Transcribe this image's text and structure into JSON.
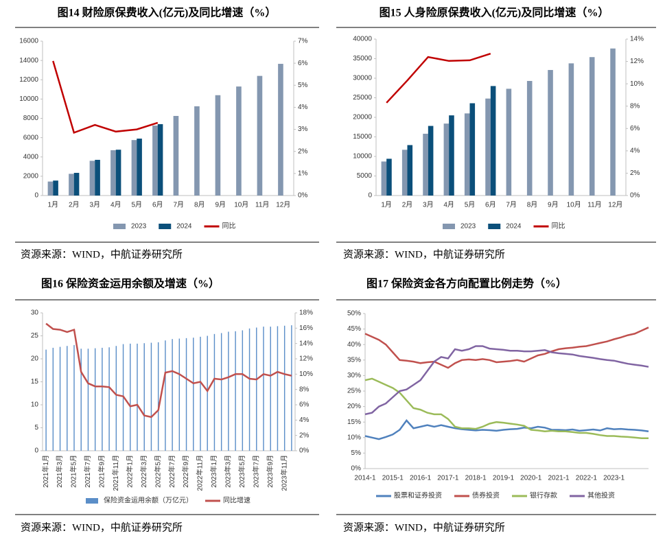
{
  "chart_data": [
    {
      "type": "bar",
      "title": "图14  财险原保费收入(亿元)及同比增速（%）",
      "source": "资源来源：WIND，中航证券研究所",
      "categories": [
        "1月",
        "2月",
        "3月",
        "4月",
        "5月",
        "6月",
        "7月",
        "8月",
        "9月",
        "10月",
        "11月",
        "12月"
      ],
      "series": [
        {
          "name": "2023",
          "type": "bar",
          "color": "#8497b0",
          "values": [
            1450,
            2250,
            3600,
            4700,
            5750,
            7250,
            8250,
            9250,
            10400,
            11300,
            12400,
            13650
          ]
        },
        {
          "name": "2024",
          "type": "bar",
          "color": "#0b4f7a",
          "values": [
            1550,
            2350,
            3700,
            4750,
            5900,
            7400,
            null,
            null,
            null,
            null,
            null,
            null
          ]
        },
        {
          "name": "同比",
          "type": "line",
          "axis": "y2",
          "color": "#c00000",
          "values": [
            6.1,
            2.85,
            3.2,
            2.9,
            3.0,
            3.3,
            null,
            null,
            null,
            null,
            null,
            null
          ]
        }
      ],
      "ylim": [
        0,
        16000
      ],
      "yticks": [
        0,
        2000,
        4000,
        6000,
        8000,
        10000,
        12000,
        14000,
        16000
      ],
      "y2lim": [
        0,
        7
      ],
      "y2ticks": [
        {
          "value": 0,
          "label": "0%"
        },
        {
          "value": 1,
          "label": "1%"
        },
        {
          "value": 2,
          "label": "2%"
        },
        {
          "value": 3,
          "label": "3%"
        },
        {
          "value": 4,
          "label": "4%"
        },
        {
          "value": 5,
          "label": "5%"
        },
        {
          "value": 6,
          "label": "6%"
        },
        {
          "value": 7,
          "label": "7%"
        }
      ]
    },
    {
      "type": "bar",
      "title": "图15  人身险原保费收入(亿元)及同比增速（%）",
      "source": "资源来源：WIND，中航证券研究所",
      "categories": [
        "1月",
        "2月",
        "3月",
        "4月",
        "5月",
        "6月",
        "7月",
        "8月",
        "9月",
        "10月",
        "11月",
        "12月"
      ],
      "series": [
        {
          "name": "2023",
          "type": "bar",
          "color": "#8497b0",
          "values": [
            8700,
            11700,
            15800,
            18400,
            21000,
            24800,
            27300,
            29300,
            32100,
            33800,
            35400,
            37600
          ]
        },
        {
          "name": "2024",
          "type": "bar",
          "color": "#0b4f7a",
          "values": [
            9400,
            12900,
            17800,
            20500,
            23600,
            28000,
            null,
            null,
            null,
            null,
            null,
            null
          ]
        },
        {
          "name": "同比",
          "type": "line",
          "axis": "y2",
          "color": "#c00000",
          "values": [
            8.3,
            10.3,
            12.4,
            12.05,
            12.1,
            12.7,
            null,
            null,
            null,
            null,
            null,
            null
          ]
        }
      ],
      "ylim": [
        0,
        40000
      ],
      "yticks": [
        0,
        5000,
        10000,
        15000,
        20000,
        25000,
        30000,
        35000,
        40000
      ],
      "y2lim": [
        0,
        14
      ],
      "y2ticks": [
        {
          "value": 0,
          "label": "0%"
        },
        {
          "value": 2,
          "label": "2%"
        },
        {
          "value": 4,
          "label": "4%"
        },
        {
          "value": 6,
          "label": "6%"
        },
        {
          "value": 8,
          "label": "8%"
        },
        {
          "value": 10,
          "label": "10%"
        },
        {
          "value": 12,
          "label": "12%"
        },
        {
          "value": 14,
          "label": "14%"
        }
      ]
    },
    {
      "type": "bar",
      "title": "图16  保险资金运用余额及增速（%）",
      "source": "资源来源：WIND，中航证券研究所",
      "categories": [
        "2021年1月",
        null,
        "2021年3月",
        null,
        "2021年5月",
        null,
        "2021年7月",
        null,
        "2021年9月",
        null,
        "2021年11月",
        null,
        "2022年1月",
        null,
        "2022年3月",
        null,
        "2022年5月",
        null,
        "2022年7月",
        null,
        "2022年9月",
        null,
        "2022年11月",
        null,
        "2023年1月",
        null,
        "2023年3月",
        null,
        "2023年5月",
        null,
        "2023年7月",
        null,
        "2023年9月",
        null,
        "2023年11月",
        null
      ],
      "series": [
        {
          "name": "保险资金运用余额（万亿元）",
          "type": "bar",
          "color": "#5b8ec8",
          "values": [
            22.0,
            22.4,
            22.6,
            22.8,
            23.0,
            22.2,
            22.2,
            22.3,
            22.4,
            22.5,
            22.8,
            23.2,
            23.3,
            23.3,
            23.4,
            23.5,
            23.6,
            24.0,
            24.3,
            24.4,
            24.5,
            24.6,
            24.8,
            25.0,
            25.4,
            25.6,
            25.9,
            26.0,
            26.2,
            26.6,
            26.8,
            27.0,
            27.0,
            27.1,
            27.2,
            27.3
          ]
        },
        {
          "name": "同比增速",
          "type": "line",
          "axis": "y2",
          "color": "#c0504d",
          "values": [
            16.6,
            15.9,
            15.8,
            15.5,
            15.8,
            10.3,
            8.8,
            8.4,
            8.4,
            8.3,
            7.3,
            7.1,
            5.8,
            6.0,
            4.6,
            4.4,
            5.3,
            10.2,
            10.4,
            10.0,
            9.4,
            8.8,
            9.0,
            7.8,
            9.4,
            9.3,
            9.6,
            10.0,
            10.0,
            9.4,
            9.3,
            10.0,
            9.8,
            10.3,
            10.0,
            9.8
          ]
        }
      ],
      "ylim": [
        0,
        30
      ],
      "yticks": [
        0,
        5,
        10,
        15,
        20,
        25,
        30
      ],
      "y2lim": [
        0,
        18
      ],
      "y2ticks": [
        {
          "value": 0,
          "label": "0%"
        },
        {
          "value": 2,
          "label": "2%"
        },
        {
          "value": 4,
          "label": "4%"
        },
        {
          "value": 6,
          "label": "6%"
        },
        {
          "value": 8,
          "label": "8%"
        },
        {
          "value": 10,
          "label": "10%"
        },
        {
          "value": 12,
          "label": "12%"
        },
        {
          "value": 14,
          "label": "14%"
        },
        {
          "value": 16,
          "label": "16%"
        },
        {
          "value": 18,
          "label": "18%"
        }
      ]
    },
    {
      "type": "line",
      "title": "图17  保险资金各方向配置比例走势（%）",
      "source": "资源来源：WIND，中航证券研究所",
      "categories": [
        "2014-1",
        null,
        null,
        null,
        "2015-1",
        null,
        null,
        null,
        "2016-1",
        null,
        null,
        null,
        "2017-1",
        null,
        null,
        null,
        "2018-1",
        null,
        null,
        null,
        "2019-1",
        null,
        null,
        null,
        "2020-1",
        null,
        null,
        null,
        "2021-1",
        null,
        null,
        null,
        "2022-1",
        null,
        null,
        null,
        "2023-1",
        null,
        null,
        null,
        null,
        null
      ],
      "series": [
        {
          "name": "股票和证券投资",
          "type": "line",
          "color": "#4f81bd",
          "values": [
            10.5,
            10,
            9.5,
            10.2,
            11,
            12.5,
            15.5,
            13,
            13.5,
            14,
            13.5,
            14,
            13.5,
            13,
            12.7,
            12.5,
            12.3,
            12.5,
            12.4,
            12.2,
            12.5,
            12.7,
            12.8,
            13.2,
            13,
            13.5,
            13.2,
            12.5,
            12.5,
            12.4,
            12.6,
            12.2,
            12.4,
            12.6,
            12.3,
            13,
            12.7,
            12.8,
            12.6,
            12.5,
            12.3,
            12
          ]
        },
        {
          "name": "债券投资",
          "type": "line",
          "color": "#c0504d",
          "values": [
            43.5,
            42.5,
            41.5,
            40,
            37.5,
            35,
            34.8,
            34.5,
            34,
            34.3,
            34.5,
            33.5,
            32.5,
            34,
            35,
            35.2,
            35,
            35.3,
            35,
            34.3,
            34.5,
            34.7,
            35,
            34.5,
            35.5,
            36.5,
            37,
            37.8,
            38.5,
            38.8,
            39,
            39.3,
            39.5,
            40,
            40.5,
            41,
            41.7,
            42.3,
            43,
            43.5,
            44.5,
            45.5
          ]
        },
        {
          "name": "银行存款",
          "type": "line",
          "color": "#9bbb59",
          "values": [
            28.5,
            29,
            28,
            27,
            26,
            24.5,
            22,
            19.5,
            19,
            18,
            17.5,
            17.5,
            16,
            13.5,
            13,
            13,
            12.8,
            13.5,
            14.5,
            15,
            14.8,
            14.5,
            14.2,
            13.8,
            12.5,
            12.3,
            12,
            12.2,
            12,
            12,
            11.8,
            11.5,
            11.5,
            11.2,
            10.8,
            10.5,
            10.5,
            10.3,
            10.2,
            10,
            9.8,
            9.8
          ]
        },
        {
          "name": "其他投资",
          "type": "line",
          "color": "#8064a2",
          "values": [
            17.5,
            18,
            20,
            21,
            23,
            25,
            25.5,
            27,
            28.5,
            31.5,
            34.5,
            36,
            35.5,
            38.5,
            38,
            38.5,
            39.5,
            39.5,
            38.7,
            38.5,
            38.3,
            38,
            38,
            37.8,
            37.8,
            38,
            38.2,
            37.5,
            37.2,
            37,
            36.8,
            36.3,
            36,
            35.7,
            35.3,
            35,
            34.8,
            34.3,
            33.8,
            33.5,
            33.2,
            32.8
          ]
        }
      ],
      "ylim": [
        0,
        50
      ],
      "yticks": [
        {
          "value": 0,
          "label": "0%"
        },
        {
          "value": 5,
          "label": "5%"
        },
        {
          "value": 10,
          "label": "10%"
        },
        {
          "value": 15,
          "label": "15%"
        },
        {
          "value": 20,
          "label": "20%"
        },
        {
          "value": 25,
          "label": "25%"
        },
        {
          "value": 30,
          "label": "30%"
        },
        {
          "value": 35,
          "label": "35%"
        },
        {
          "value": 40,
          "label": "40%"
        },
        {
          "value": 45,
          "label": "45%"
        },
        {
          "value": 50,
          "label": "50%"
        }
      ]
    }
  ]
}
